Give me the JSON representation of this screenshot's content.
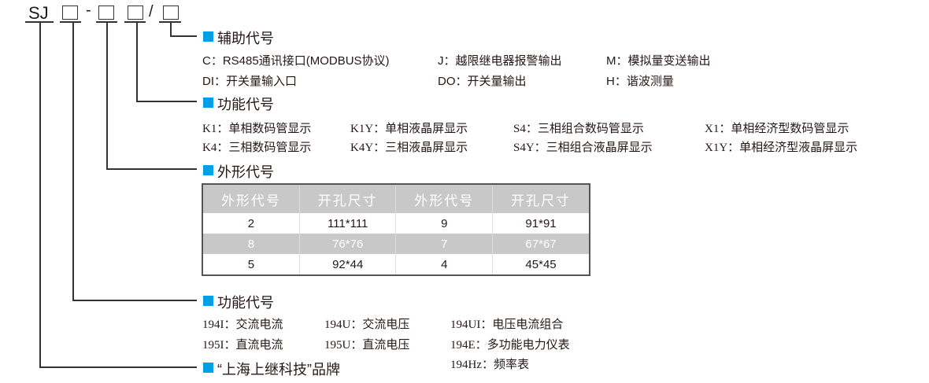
{
  "model": {
    "prefix": "SJ",
    "dash": "-",
    "slash": "/"
  },
  "accent": "#00a0e9",
  "aux": {
    "title": "辅助代号",
    "items": [
      [
        "C：RS485通讯接口(MODBUS协议)",
        "J：越限继电器报警输出",
        "M：模拟量变送输出"
      ],
      [
        "DI：开关量输入口",
        "DO：开关量输出",
        "H：谐波测量"
      ]
    ]
  },
  "display": {
    "title": "功能代号",
    "items": [
      [
        "K1：单相数码管显示",
        "K1Y：单相液晶屏显示",
        "S4：三相组合数码管显示",
        "X1：单相经济型数码管显示"
      ],
      [
        "K4：三相数码管显示",
        "K4Y：三相液晶屏显示",
        "S4Y：三相组合液晶屏显示",
        "X1Y：单相经济型液晶屏显示"
      ]
    ]
  },
  "shape": {
    "title": "外形代号",
    "headers": [
      "外形代号",
      "开孔尺寸",
      "外形代号",
      "开孔尺寸"
    ],
    "rows": [
      [
        "2",
        "111*111",
        "9",
        "91*91"
      ],
      [
        "8",
        "76*76",
        "7",
        "67*67"
      ],
      [
        "5",
        "92*44",
        "4",
        "45*45"
      ]
    ]
  },
  "function": {
    "title": "功能代号",
    "items": [
      [
        "194I：交流电流",
        "194U：交流电压",
        "194UI：电压电流组合"
      ],
      [
        "195I：直流电流",
        "195U：直流电压",
        "194E：多功能电力仪表"
      ],
      [
        "",
        "",
        "194Hz：频率表"
      ]
    ]
  },
  "brand": {
    "title": "“上海上继科技”品牌"
  }
}
